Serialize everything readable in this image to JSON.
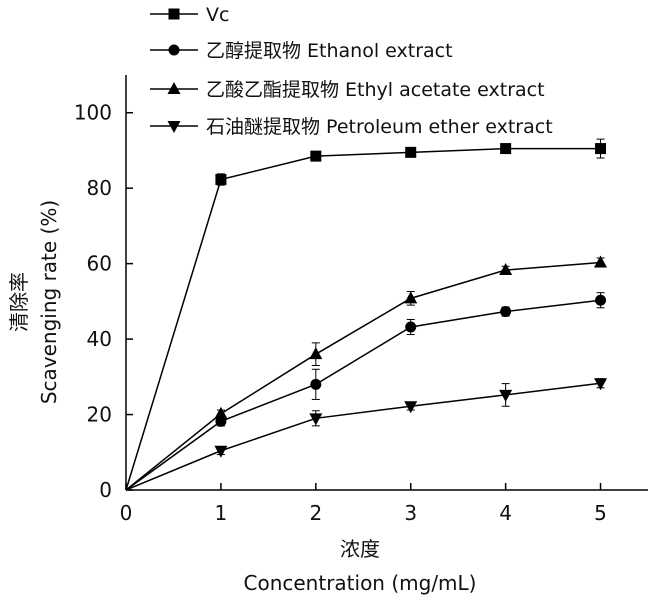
{
  "chart_data": {
    "type": "line",
    "title": "",
    "xlabel_cn": "浓度",
    "xlabel": "Concentration (mg/mL)",
    "ylabel_cn": "清除率",
    "ylabel": "Scavenging rate (%)",
    "x": [
      0,
      1,
      2,
      3,
      4,
      5
    ],
    "xlim": [
      0,
      5.5
    ],
    "ylim": [
      0,
      110
    ],
    "xticks": [
      "0",
      "1",
      "2",
      "3",
      "4",
      "5"
    ],
    "yticks": [
      "0",
      "20",
      "40",
      "60",
      "80",
      "100"
    ],
    "grid": false,
    "legend_position": "top-left, above plot",
    "series": [
      {
        "name": "Vc",
        "marker": "square",
        "color": "#000000",
        "values": [
          0,
          82.3,
          88.5,
          89.5,
          90.5,
          90.5
        ],
        "errors": [
          0,
          1.5,
          0.8,
          0.8,
          0.6,
          2.5
        ]
      },
      {
        "name": "乙醇提取物 Ethanol extract",
        "marker": "circle",
        "color": "#000000",
        "values": [
          0,
          18.2,
          28.0,
          43.2,
          47.3,
          50.3
        ],
        "errors": [
          0,
          1.2,
          4.0,
          2.0,
          1.2,
          2.0
        ]
      },
      {
        "name": "乙酸乙酯提取物 Ethyl acetate extract",
        "marker": "triangle-up",
        "color": "#000000",
        "values": [
          0,
          20.2,
          36.0,
          50.8,
          58.3,
          60.3
        ],
        "errors": [
          0,
          1.0,
          3.0,
          1.8,
          1.0,
          1.2
        ]
      },
      {
        "name": "石油醚提取物 Petroleum ether extract",
        "marker": "triangle-down",
        "color": "#000000",
        "values": [
          0,
          10.4,
          19.0,
          22.2,
          25.2,
          28.3
        ],
        "errors": [
          0,
          1.0,
          2.0,
          1.0,
          3.0,
          1.2
        ]
      }
    ]
  }
}
